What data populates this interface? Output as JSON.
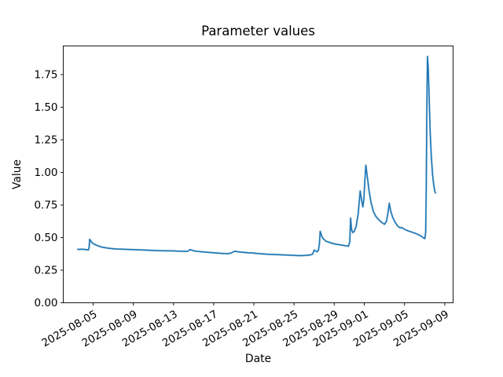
{
  "chart_data": {
    "type": "line",
    "title": "Parameter values",
    "xlabel": "Date",
    "ylabel": "Value",
    "line_color": "#1f77b4",
    "axis_color": "#000000",
    "background_color": "#ffffff",
    "grid": false,
    "legend": null,
    "x_unit": "days since 2025-08-01",
    "xlim": [
      1.03,
      39.83
    ],
    "ylim": [
      0,
      1.97
    ],
    "x_ticks": [
      {
        "x": 4,
        "label": "2025-08-05"
      },
      {
        "x": 8,
        "label": "2025-08-09"
      },
      {
        "x": 12,
        "label": "2025-08-13"
      },
      {
        "x": 16,
        "label": "2025-08-17"
      },
      {
        "x": 20,
        "label": "2025-08-21"
      },
      {
        "x": 24,
        "label": "2025-08-25"
      },
      {
        "x": 28,
        "label": "2025-08-29"
      },
      {
        "x": 31,
        "label": "2025-09-01"
      },
      {
        "x": 35,
        "label": "2025-09-05"
      },
      {
        "x": 39,
        "label": "2025-09-09"
      }
    ],
    "y_ticks": [
      {
        "y": 0.0,
        "label": "0.00"
      },
      {
        "y": 0.25,
        "label": "0.25"
      },
      {
        "y": 0.5,
        "label": "0.50"
      },
      {
        "y": 0.75,
        "label": "0.75"
      },
      {
        "y": 1.0,
        "label": "1.00"
      },
      {
        "y": 1.25,
        "label": "1.25"
      },
      {
        "y": 1.5,
        "label": "1.50"
      },
      {
        "y": 1.75,
        "label": "1.75"
      }
    ],
    "series": [
      {
        "name": "value",
        "color": "#1f77b4",
        "points": [
          [
            2.47,
            0.41
          ],
          [
            2.65,
            0.409
          ],
          [
            2.85,
            0.411
          ],
          [
            3.05,
            0.41
          ],
          [
            3.25,
            0.408
          ],
          [
            3.42,
            0.406
          ],
          [
            3.52,
            0.404
          ],
          [
            3.6,
            0.424
          ],
          [
            3.66,
            0.487
          ],
          [
            3.72,
            0.48
          ],
          [
            3.8,
            0.47
          ],
          [
            3.92,
            0.46
          ],
          [
            4.05,
            0.452
          ],
          [
            4.22,
            0.446
          ],
          [
            4.45,
            0.438
          ],
          [
            4.7,
            0.431
          ],
          [
            4.95,
            0.426
          ],
          [
            5.3,
            0.421
          ],
          [
            5.7,
            0.417
          ],
          [
            6.1,
            0.414
          ],
          [
            6.5,
            0.412
          ],
          [
            7.0,
            0.411
          ],
          [
            7.5,
            0.409
          ],
          [
            8.0,
            0.408
          ],
          [
            8.5,
            0.406
          ],
          [
            9.0,
            0.405
          ],
          [
            9.5,
            0.403
          ],
          [
            10.0,
            0.401
          ],
          [
            10.5,
            0.4
          ],
          [
            11.0,
            0.399
          ],
          [
            11.5,
            0.399
          ],
          [
            12.0,
            0.398
          ],
          [
            12.5,
            0.396
          ],
          [
            13.0,
            0.395
          ],
          [
            13.3,
            0.394
          ],
          [
            13.5,
            0.398
          ],
          [
            13.63,
            0.408
          ],
          [
            13.8,
            0.404
          ],
          [
            14.0,
            0.399
          ],
          [
            14.3,
            0.395
          ],
          [
            14.7,
            0.392
          ],
          [
            15.1,
            0.389
          ],
          [
            15.6,
            0.386
          ],
          [
            16.1,
            0.383
          ],
          [
            16.6,
            0.38
          ],
          [
            17.0,
            0.378
          ],
          [
            17.4,
            0.377
          ],
          [
            17.7,
            0.381
          ],
          [
            17.95,
            0.39
          ],
          [
            18.15,
            0.396
          ],
          [
            18.35,
            0.392
          ],
          [
            18.65,
            0.389
          ],
          [
            19.0,
            0.387
          ],
          [
            19.4,
            0.384
          ],
          [
            19.85,
            0.382
          ],
          [
            20.4,
            0.378
          ],
          [
            20.95,
            0.375
          ],
          [
            21.5,
            0.372
          ],
          [
            22.1,
            0.37
          ],
          [
            22.7,
            0.368
          ],
          [
            23.3,
            0.366
          ],
          [
            23.9,
            0.364
          ],
          [
            24.4,
            0.362
          ],
          [
            24.85,
            0.362
          ],
          [
            25.25,
            0.364
          ],
          [
            25.6,
            0.367
          ],
          [
            25.85,
            0.373
          ],
          [
            26.0,
            0.404
          ],
          [
            26.12,
            0.398
          ],
          [
            26.28,
            0.391
          ],
          [
            26.42,
            0.401
          ],
          [
            26.52,
            0.452
          ],
          [
            26.6,
            0.548
          ],
          [
            26.7,
            0.524
          ],
          [
            26.82,
            0.5
          ],
          [
            26.98,
            0.486
          ],
          [
            27.2,
            0.472
          ],
          [
            27.55,
            0.462
          ],
          [
            27.95,
            0.453
          ],
          [
            28.4,
            0.447
          ],
          [
            28.85,
            0.441
          ],
          [
            29.2,
            0.437
          ],
          [
            29.42,
            0.434
          ],
          [
            29.55,
            0.47
          ],
          [
            29.63,
            0.65
          ],
          [
            29.72,
            0.56
          ],
          [
            29.85,
            0.538
          ],
          [
            30.0,
            0.548
          ],
          [
            30.18,
            0.585
          ],
          [
            30.38,
            0.68
          ],
          [
            30.58,
            0.858
          ],
          [
            30.72,
            0.79
          ],
          [
            30.85,
            0.735
          ],
          [
            30.95,
            0.8
          ],
          [
            31.05,
            0.94
          ],
          [
            31.15,
            1.055
          ],
          [
            31.28,
            0.975
          ],
          [
            31.45,
            0.868
          ],
          [
            31.65,
            0.775
          ],
          [
            31.9,
            0.7
          ],
          [
            32.15,
            0.662
          ],
          [
            32.45,
            0.635
          ],
          [
            32.75,
            0.615
          ],
          [
            33.0,
            0.602
          ],
          [
            33.2,
            0.625
          ],
          [
            33.35,
            0.69
          ],
          [
            33.48,
            0.763
          ],
          [
            33.62,
            0.705
          ],
          [
            33.8,
            0.66
          ],
          [
            34.0,
            0.625
          ],
          [
            34.3,
            0.59
          ],
          [
            34.55,
            0.575
          ],
          [
            34.72,
            0.578
          ],
          [
            34.95,
            0.565
          ],
          [
            35.3,
            0.553
          ],
          [
            35.7,
            0.543
          ],
          [
            36.1,
            0.532
          ],
          [
            36.45,
            0.52
          ],
          [
            36.72,
            0.508
          ],
          [
            36.92,
            0.496
          ],
          [
            37.02,
            0.492
          ],
          [
            37.1,
            0.54
          ],
          [
            37.16,
            0.9
          ],
          [
            37.22,
            1.5
          ],
          [
            37.28,
            1.89
          ],
          [
            37.36,
            1.8
          ],
          [
            37.45,
            1.56
          ],
          [
            37.55,
            1.3
          ],
          [
            37.66,
            1.12
          ],
          [
            37.78,
            0.99
          ],
          [
            37.9,
            0.905
          ],
          [
            38.02,
            0.852
          ],
          [
            38.08,
            0.843
          ]
        ]
      }
    ]
  }
}
